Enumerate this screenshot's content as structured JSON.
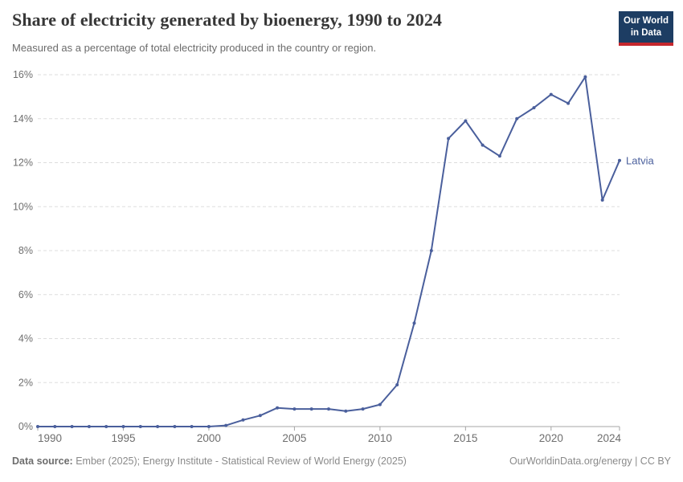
{
  "header": {
    "title": "Share of electricity generated by bioenergy, 1990 to 2024",
    "subtitle": "Measured as a percentage of total electricity produced in the country or region.",
    "logo": {
      "line1": "Our World",
      "line2": "in Data",
      "bg": "#1d3d63",
      "accent": "#c5272d"
    }
  },
  "chart_data": {
    "type": "line",
    "title": "Share of electricity generated by bioenergy, 1990 to 2024",
    "xlabel": "",
    "ylabel": "",
    "xlim": [
      1990,
      2024
    ],
    "ylim": [
      0,
      16
    ],
    "x_ticks": [
      1990,
      1995,
      2000,
      2005,
      2010,
      2015,
      2020,
      2024
    ],
    "y_ticks": [
      0,
      2,
      4,
      6,
      8,
      10,
      12,
      14,
      16
    ],
    "y_tick_suffix": "%",
    "grid": "horizontal-dashed",
    "legend": "end-of-line-label",
    "series": [
      {
        "name": "Latvia",
        "color": "#4a5f9c",
        "x": [
          1990,
          1991,
          1992,
          1993,
          1994,
          1995,
          1996,
          1997,
          1998,
          1999,
          2000,
          2001,
          2002,
          2003,
          2004,
          2005,
          2006,
          2007,
          2008,
          2009,
          2010,
          2011,
          2012,
          2013,
          2014,
          2015,
          2016,
          2017,
          2018,
          2019,
          2020,
          2021,
          2022,
          2023,
          2024
        ],
        "values": [
          0,
          0,
          0,
          0,
          0,
          0,
          0,
          0,
          0,
          0,
          0,
          0.05,
          0.3,
          0.5,
          0.85,
          0.8,
          0.8,
          0.8,
          0.7,
          0.8,
          1.0,
          1.9,
          4.7,
          8.0,
          13.1,
          13.9,
          12.8,
          12.3,
          14.0,
          14.5,
          15.1,
          14.7,
          15.9,
          10.3,
          12.1
        ]
      }
    ]
  },
  "footer": {
    "source_label": "Data source:",
    "source_text": "Ember (2025); Energy Institute - Statistical Review of World Energy (2025)",
    "credit": "OurWorldinData.org/energy | CC BY"
  }
}
